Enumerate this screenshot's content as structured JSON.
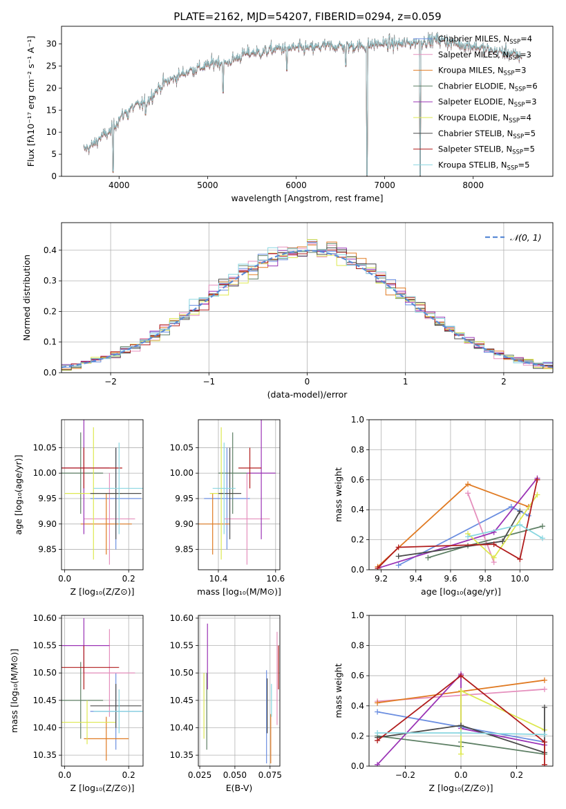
{
  "figure_title": "PLATE=2162, MJD=54207, FIBERID=0294, z=0.059",
  "colors": {
    "Chabrier MILES": "#6b8ee0",
    "Salpeter MILES": "#e58fbd",
    "Kroupa MILES": "#e07a22",
    "Chabrier ELODIE": "#5d7f64",
    "Salpeter ELODIE": "#9a33b5",
    "Kroupa ELODIE": "#dde84f",
    "Chabrier STELIB": "#4a4a4a",
    "Salpeter STELIB": "#b01c1c",
    "Kroupa STELIB": "#88d6e0"
  },
  "chart_data": [
    {
      "id": "spectrum",
      "type": "line",
      "xlabel": "wavelength [Angstrom, rest frame]",
      "ylabel": "Flux [fλ10⁻¹⁷ erg cm⁻² s⁻¹ A⁻¹]",
      "xlim": [
        3350,
        8900
      ],
      "ylim": [
        0,
        34
      ],
      "xticks": [
        4000,
        5000,
        6000,
        7000,
        8000
      ],
      "yticks": [
        0,
        5,
        10,
        15,
        20,
        25,
        30
      ],
      "legend_position": "top-right",
      "legend": [
        {
          "model": "Chabrier MILES",
          "label": "Chabrier MILES, N",
          "sub": "SSP",
          "count": "=4"
        },
        {
          "model": "Salpeter MILES",
          "label": "Salpeter MILES, N",
          "sub": "SSP",
          "count": "=3"
        },
        {
          "model": "Kroupa MILES",
          "label": "Kroupa MILES, N",
          "sub": "SSP",
          "count": "=3"
        },
        {
          "model": "Chabrier ELODIE",
          "label": "Chabrier ELODIE, N",
          "sub": "SSP",
          "count": "=6"
        },
        {
          "model": "Salpeter ELODIE",
          "label": "Salpeter ELODIE, N",
          "sub": "SSP",
          "count": "=3"
        },
        {
          "model": "Kroupa ELODIE",
          "label": "Kroupa ELODIE, N",
          "sub": "SSP",
          "count": "=4"
        },
        {
          "model": "Chabrier STELIB",
          "label": "Chabrier STELIB, N",
          "sub": "SSP",
          "count": "=5"
        },
        {
          "model": "Salpeter STELIB",
          "label": "Salpeter STELIB, N",
          "sub": "SSP",
          "count": "=5"
        },
        {
          "model": "Kroupa STELIB",
          "label": "Kroupa STELIB, N",
          "sub": "SSP",
          "count": "=5"
        }
      ],
      "continuum": [
        [
          3600,
          6
        ],
        [
          3700,
          7
        ],
        [
          3800,
          9
        ],
        [
          3900,
          10
        ],
        [
          4000,
          13
        ],
        [
          4100,
          15
        ],
        [
          4200,
          16
        ],
        [
          4300,
          16.5
        ],
        [
          4400,
          19
        ],
        [
          4500,
          21
        ],
        [
          4600,
          22
        ],
        [
          4700,
          23
        ],
        [
          4800,
          24
        ],
        [
          4900,
          24.5
        ],
        [
          5000,
          25
        ],
        [
          5100,
          26
        ],
        [
          5200,
          25.5
        ],
        [
          5300,
          26.5
        ],
        [
          5400,
          27.5
        ],
        [
          5500,
          28
        ],
        [
          5600,
          28
        ],
        [
          5700,
          28.5
        ],
        [
          5800,
          29
        ],
        [
          5900,
          29
        ],
        [
          6000,
          29
        ],
        [
          6100,
          29
        ],
        [
          6200,
          29
        ],
        [
          6300,
          29.5
        ],
        [
          6400,
          29.5
        ],
        [
          6500,
          29.5
        ],
        [
          6600,
          29.5
        ],
        [
          6700,
          29.5
        ],
        [
          6800,
          29.5
        ],
        [
          6900,
          30
        ],
        [
          7000,
          30
        ],
        [
          7200,
          30
        ],
        [
          7400,
          30.5
        ],
        [
          7600,
          31
        ],
        [
          7800,
          30
        ],
        [
          8000,
          29.5
        ],
        [
          8200,
          28.5
        ],
        [
          8400,
          28
        ],
        [
          8550,
          27
        ]
      ],
      "absorption_lines": [
        [
          3934,
          1
        ],
        [
          4102,
          13
        ],
        [
          4300,
          14
        ],
        [
          5175,
          19
        ],
        [
          5893,
          24
        ],
        [
          6563,
          25
        ],
        [
          6800,
          0
        ],
        [
          7400,
          0
        ]
      ]
    },
    {
      "id": "residuals",
      "type": "line",
      "xlabel": "(data-model)/error",
      "ylabel": "Normed distribution",
      "xlim": [
        -2.5,
        2.5
      ],
      "ylim": [
        0,
        0.49
      ],
      "xticks": [
        -2,
        -1,
        0,
        1,
        2
      ],
      "yticks": [
        0.0,
        0.1,
        0.2,
        0.3,
        0.4
      ],
      "grid": true,
      "legend_position": "top-right",
      "reference_series": "𝒩(0, 1)",
      "bins": 50
    },
    {
      "id": "age-vs-Z",
      "type": "scatter",
      "xlabel": "Z [log₁₀(Z/Z⊙)]",
      "ylabel": "age  [log₁₀(age/yr)]",
      "xlim": [
        -0.01,
        0.245
      ],
      "ylim": [
        9.81,
        10.105
      ],
      "xticks": [
        0.0,
        0.2
      ],
      "yticks": [
        9.85,
        9.9,
        9.95,
        10.0,
        10.05
      ],
      "grid": true,
      "points": [
        {
          "model": "Chabrier MILES",
          "x": 0.16,
          "xerr": 0.08,
          "y": 9.95,
          "yerr": 0.1
        },
        {
          "model": "Salpeter MILES",
          "x": 0.14,
          "xerr": 0.08,
          "y": 9.91,
          "yerr": 0.09
        },
        {
          "model": "Kroupa MILES",
          "x": 0.13,
          "xerr": 0.08,
          "y": 9.9,
          "yerr": 0.06
        },
        {
          "model": "Chabrier ELODIE",
          "x": 0.05,
          "xerr": 0.07,
          "y": 10.0,
          "yerr": 0.08
        },
        {
          "model": "Salpeter ELODIE",
          "x": 0.06,
          "xerr": 0.08,
          "y": 10.01,
          "yerr": 0.13
        },
        {
          "model": "Kroupa ELODIE",
          "x": 0.09,
          "xerr": 0.09,
          "y": 9.96,
          "yerr": 0.13
        },
        {
          "model": "Chabrier STELIB",
          "x": 0.16,
          "xerr": 0.08,
          "y": 9.96,
          "yerr": 0.09
        },
        {
          "model": "Salpeter STELIB",
          "x": 0.06,
          "xerr": 0.12,
          "y": 10.01,
          "yerr": 0.04
        },
        {
          "model": "Kroupa STELIB",
          "x": 0.17,
          "xerr": 0.08,
          "y": 9.97,
          "yerr": 0.09
        }
      ]
    },
    {
      "id": "age-vs-mass",
      "type": "scatter",
      "xlabel": "mass [log₁₀(M/M⊙)]",
      "ylabel": "",
      "xlim": [
        10.33,
        10.615
      ],
      "ylim": [
        9.81,
        10.105
      ],
      "xticks": [
        10.4,
        10.6
      ],
      "yticks": [
        9.85,
        9.9,
        9.95,
        10.0,
        10.05
      ],
      "grid": true,
      "points": [
        {
          "model": "Chabrier MILES",
          "x": 10.43,
          "xerr": 0.08,
          "y": 9.95,
          "yerr": 0.1
        },
        {
          "model": "Salpeter MILES",
          "x": 10.5,
          "xerr": 0.08,
          "y": 9.91,
          "yerr": 0.09
        },
        {
          "model": "Kroupa MILES",
          "x": 10.38,
          "xerr": 0.06,
          "y": 9.9,
          "yerr": 0.06
        },
        {
          "model": "Chabrier ELODIE",
          "x": 10.45,
          "xerr": 0.05,
          "y": 10.0,
          "yerr": 0.08
        },
        {
          "model": "Salpeter ELODIE",
          "x": 10.55,
          "xerr": 0.05,
          "y": 10.0,
          "yerr": 0.13
        },
        {
          "model": "Kroupa ELODIE",
          "x": 10.41,
          "xerr": 0.04,
          "y": 9.96,
          "yerr": 0.13
        },
        {
          "model": "Chabrier STELIB",
          "x": 10.44,
          "xerr": 0.04,
          "y": 9.96,
          "yerr": 0.09
        },
        {
          "model": "Salpeter STELIB",
          "x": 10.51,
          "xerr": 0.04,
          "y": 10.01,
          "yerr": 0.04
        },
        {
          "model": "Kroupa STELIB",
          "x": 10.42,
          "xerr": 0.04,
          "y": 9.97,
          "yerr": 0.09
        }
      ]
    },
    {
      "id": "weight-vs-age",
      "type": "line",
      "xlabel": "age  [log₁₀(age/yr)]",
      "ylabel": "mass weight",
      "xlim": [
        9.13,
        10.19
      ],
      "ylim": [
        0,
        1
      ],
      "xticks": [
        9.2,
        9.4,
        9.6,
        9.8,
        10.0
      ],
      "yticks": [
        0.0,
        0.2,
        0.4,
        0.6,
        0.8,
        1.0
      ],
      "grid": true,
      "series": [
        {
          "model": "Chabrier MILES",
          "points": [
            [
              9.3,
              0.03
            ],
            [
              9.95,
              0.42
            ],
            [
              10.05,
              0.36
            ]
          ]
        },
        {
          "model": "Salpeter MILES",
          "points": [
            [
              9.7,
              0.51
            ],
            [
              9.85,
              0.05
            ]
          ]
        },
        {
          "model": "Kroupa MILES",
          "points": [
            [
              9.18,
              0.02
            ],
            [
              9.7,
              0.57
            ],
            [
              10.05,
              0.42
            ]
          ]
        },
        {
          "model": "Chabrier ELODIE",
          "points": [
            [
              9.47,
              0.08
            ],
            [
              9.7,
              0.16
            ],
            [
              10.13,
              0.29
            ]
          ]
        },
        {
          "model": "Salpeter ELODIE",
          "points": [
            [
              9.18,
              0.01
            ],
            [
              9.85,
              0.25
            ],
            [
              10.1,
              0.61
            ]
          ]
        },
        {
          "model": "Kroupa ELODIE",
          "points": [
            [
              9.7,
              0.24
            ],
            [
              9.85,
              0.08
            ],
            [
              10.1,
              0.5
            ]
          ]
        },
        {
          "model": "Chabrier STELIB",
          "points": [
            [
              9.3,
              0.09
            ],
            [
              9.9,
              0.19
            ],
            [
              10.0,
              0.39
            ]
          ]
        },
        {
          "model": "Salpeter STELIB",
          "points": [
            [
              9.18,
              0.01
            ],
            [
              9.3,
              0.15
            ],
            [
              9.85,
              0.17
            ],
            [
              10.0,
              0.07
            ],
            [
              10.1,
              0.6
            ]
          ]
        },
        {
          "model": "Kroupa STELIB",
          "points": [
            [
              9.7,
              0.22
            ],
            [
              10.0,
              0.3
            ],
            [
              10.13,
              0.21
            ]
          ]
        }
      ]
    },
    {
      "id": "mass-vs-Z",
      "type": "scatter",
      "xlabel": "Z [log₁₀(Z/Z⊙)]",
      "ylabel": "mass [log₁₀(M/M⊙)]",
      "xlim": [
        -0.01,
        0.245
      ],
      "ylim": [
        10.33,
        10.605
      ],
      "xticks": [
        0.0,
        0.2
      ],
      "yticks": [
        10.35,
        10.4,
        10.45,
        10.5,
        10.55,
        10.6
      ],
      "grid": true,
      "points": [
        {
          "model": "Chabrier MILES",
          "x": 0.16,
          "xerr": 0.08,
          "y": 10.43,
          "yerr": 0.07
        },
        {
          "model": "Salpeter MILES",
          "x": 0.14,
          "xerr": 0.08,
          "y": 10.5,
          "yerr": 0.08
        },
        {
          "model": "Kroupa MILES",
          "x": 0.13,
          "xerr": 0.07,
          "y": 10.38,
          "yerr": 0.04
        },
        {
          "model": "Chabrier ELODIE",
          "x": 0.05,
          "xerr": 0.07,
          "y": 10.45,
          "yerr": 0.07
        },
        {
          "model": "Salpeter ELODIE",
          "x": 0.06,
          "xerr": 0.08,
          "y": 10.55,
          "yerr": 0.05
        },
        {
          "model": "Kroupa ELODIE",
          "x": 0.07,
          "xerr": 0.09,
          "y": 10.41,
          "yerr": 0.04
        },
        {
          "model": "Chabrier STELIB",
          "x": 0.16,
          "xerr": 0.08,
          "y": 10.44,
          "yerr": 0.04
        },
        {
          "model": "Salpeter STELIB",
          "x": 0.06,
          "xerr": 0.11,
          "y": 10.51,
          "yerr": 0.04
        },
        {
          "model": "Kroupa STELIB",
          "x": 0.17,
          "xerr": 0.08,
          "y": 10.43,
          "yerr": 0.04
        }
      ]
    },
    {
      "id": "mass-vs-ebv",
      "type": "scatter",
      "xlabel": "E(B-V)",
      "ylabel": "",
      "xlim": [
        0.024,
        0.082
      ],
      "ylim": [
        10.33,
        10.605
      ],
      "xticks": [
        0.025,
        0.05,
        0.075
      ],
      "yticks": [
        10.35,
        10.4,
        10.45,
        10.5,
        10.55,
        10.6
      ],
      "grid": true,
      "points": [
        {
          "model": "Chabrier MILES",
          "x": 0.0725,
          "y": 10.42,
          "yerr": 0.085
        },
        {
          "model": "Salpeter MILES",
          "x": 0.08,
          "y": 10.49,
          "yerr": 0.085
        },
        {
          "model": "Kroupa MILES",
          "x": 0.0755,
          "y": 10.38,
          "yerr": 0.045
        },
        {
          "model": "Chabrier ELODIE",
          "x": 0.03,
          "y": 10.43,
          "yerr": 0.07
        },
        {
          "model": "Salpeter ELODIE",
          "x": 0.0305,
          "y": 10.53,
          "yerr": 0.06
        },
        {
          "model": "Kroupa ELODIE",
          "x": 0.028,
          "y": 10.44,
          "yerr": 0.06
        },
        {
          "model": "Chabrier STELIB",
          "x": 0.073,
          "y": 10.44,
          "yerr": 0.05
        },
        {
          "model": "Salpeter STELIB",
          "x": 0.081,
          "y": 10.51,
          "yerr": 0.04
        },
        {
          "model": "Kroupa STELIB",
          "x": 0.076,
          "y": 10.45,
          "yerr": 0.03
        }
      ]
    },
    {
      "id": "weight-vs-Z",
      "type": "line",
      "xlabel": "Z [log₁₀(Z/Z⊙)]",
      "ylabel": "mass weight",
      "xlim": [
        -0.33,
        0.33
      ],
      "ylim": [
        0,
        1
      ],
      "xticks": [
        -0.2,
        0.0,
        0.2
      ],
      "yticks": [
        0.0,
        0.2,
        0.4,
        0.6,
        0.8,
        1.0
      ],
      "grid": true,
      "series": [
        {
          "model": "Chabrier MILES",
          "points": [
            [
              -0.3,
              0.36
            ],
            [
              0.3,
              0.16
            ]
          ]
        },
        {
          "model": "Salpeter MILES",
          "points": [
            [
              -0.3,
              0.43
            ],
            [
              0.3,
              0.51
            ]
          ]
        },
        {
          "model": "Kroupa MILES",
          "points": [
            [
              -0.3,
              0.42
            ],
            [
              0.3,
              0.57
            ]
          ]
        },
        {
          "model": "Chabrier ELODIE",
          "points": [
            [
              -0.3,
              0.2
            ],
            [
              0.0,
              0.13
            ],
            [
              0.0,
              0.16
            ],
            [
              0.3,
              0.08
            ]
          ]
        },
        {
          "model": "Salpeter ELODIE",
          "points": [
            [
              -0.3,
              0.01
            ],
            [
              0.0,
              0.61
            ],
            [
              0.0,
              0.25
            ],
            [
              0.3,
              0.14
            ]
          ]
        },
        {
          "model": "Kroupa ELODIE",
          "points": [
            [
              0.0,
              0.08
            ],
            [
              0.0,
              0.5
            ],
            [
              0.3,
              0.24
            ]
          ]
        },
        {
          "model": "Chabrier STELIB",
          "points": [
            [
              -0.3,
              0.19
            ],
            [
              0.0,
              0.27
            ],
            [
              0.3,
              0.09
            ],
            [
              0.3,
              0.39
            ]
          ]
        },
        {
          "model": "Salpeter STELIB",
          "points": [
            [
              -0.3,
              0.17
            ],
            [
              0.0,
              0.6
            ],
            [
              0.3,
              0.16
            ],
            [
              0.3,
              0.01
            ]
          ]
        },
        {
          "model": "Kroupa STELIB",
          "points": [
            [
              -0.3,
              0.22
            ],
            [
              0.0,
              0.22
            ],
            [
              0.3,
              0.21
            ]
          ]
        }
      ]
    }
  ]
}
